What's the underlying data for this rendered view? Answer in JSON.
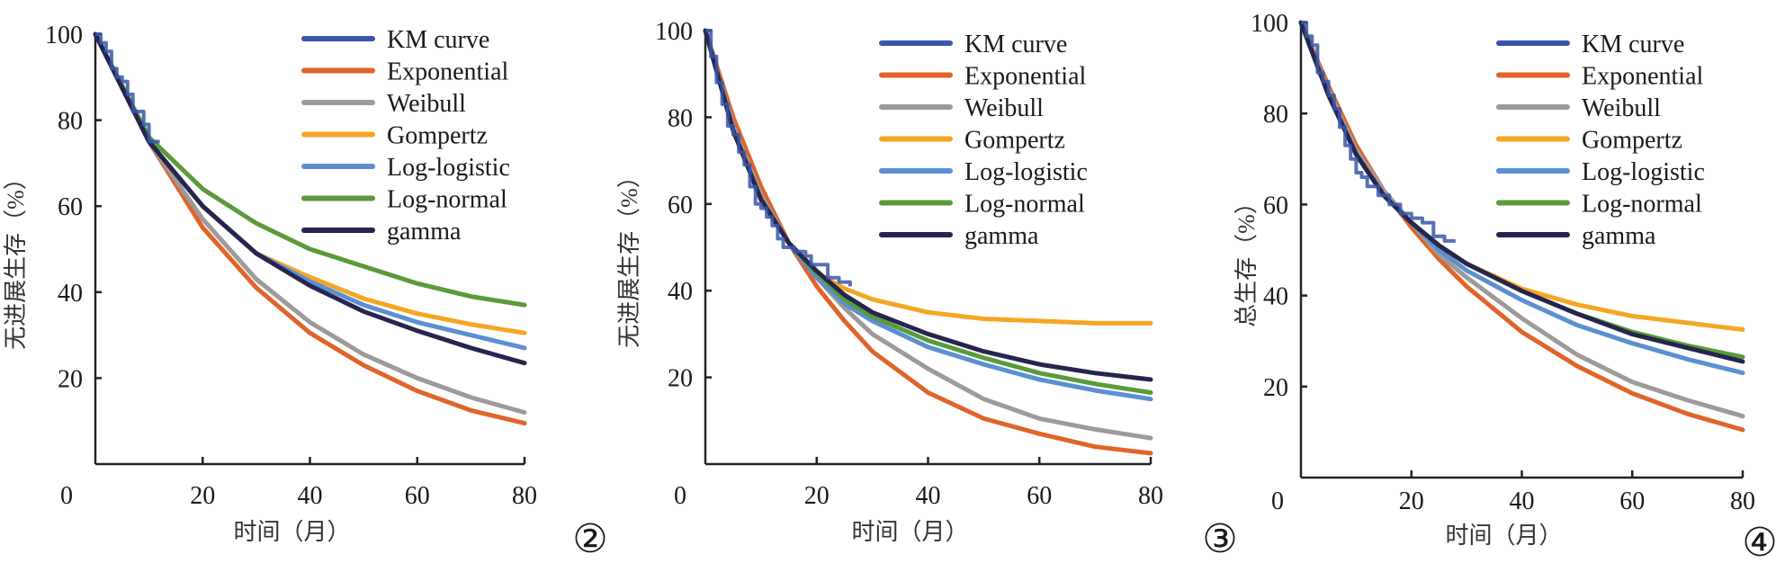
{
  "figure": {
    "panel_markers": [
      "②",
      "③",
      "④"
    ]
  },
  "legend_colors": {
    "KM curve": "#3a56a8",
    "Exponential": "#e0642a",
    "Weibull": "#9e9a9a",
    "Gompertz": "#f5a623",
    "Log-logistic": "#5b8fd0",
    "Log-normal": "#5a9a3a",
    "gamma": "#25254f"
  },
  "chart_data": [
    {
      "type": "line",
      "panel": "②",
      "title": "",
      "xlabel": "时间（月）",
      "ylabel": "无进展生存（%）",
      "xlim": [
        0,
        80
      ],
      "ylim": [
        0,
        100
      ],
      "xticks": [
        0,
        20,
        40,
        60,
        80
      ],
      "yticks": [
        20,
        40,
        60,
        80,
        100
      ],
      "grid": false,
      "legend_position": "top-right",
      "legend": [
        "KM curve",
        "Exponential",
        "Weibull",
        "Gompertz",
        "Log-logistic",
        "Log-normal",
        "gamma"
      ],
      "x": [
        0,
        10,
        20,
        30,
        40,
        50,
        60,
        70,
        80
      ],
      "km": [
        [
          0,
          100
        ],
        [
          1,
          98
        ],
        [
          2,
          96
        ],
        [
          3,
          92
        ],
        [
          4,
          90
        ],
        [
          5,
          89
        ],
        [
          6,
          86
        ],
        [
          7,
          82
        ],
        [
          8,
          82
        ],
        [
          9,
          79
        ],
        [
          10,
          75
        ],
        [
          12,
          75
        ]
      ],
      "series": [
        {
          "name": "Exponential",
          "values": [
            100,
            75,
            55,
            41,
            30.5,
            23,
            17,
            12.5,
            9.5
          ]
        },
        {
          "name": "Weibull",
          "values": [
            100,
            75,
            57,
            43,
            33,
            25.5,
            20,
            15.5,
            12
          ]
        },
        {
          "name": "Gompertz",
          "values": [
            100,
            75,
            60,
            49,
            43.5,
            38.5,
            35,
            32.5,
            30.5
          ]
        },
        {
          "name": "Log-logistic",
          "values": [
            100,
            75,
            60,
            49,
            42.5,
            37,
            33,
            30,
            27
          ]
        },
        {
          "name": "Log-normal",
          "values": [
            100,
            76,
            64,
            56,
            50,
            46,
            42,
            39,
            37
          ]
        },
        {
          "name": "gamma",
          "values": [
            100,
            75,
            60,
            49,
            41.5,
            35.5,
            31,
            27,
            23.5
          ]
        }
      ]
    },
    {
      "type": "line",
      "panel": "③",
      "title": "",
      "xlabel": "时间（月）",
      "ylabel": "无进展生存（%）",
      "xlim": [
        0,
        80
      ],
      "ylim": [
        0,
        100
      ],
      "xticks": [
        0,
        20,
        40,
        60,
        80
      ],
      "yticks": [
        20,
        40,
        60,
        80,
        100
      ],
      "grid": false,
      "legend_position": "top-right",
      "legend": [
        "KM curve",
        "Exponential",
        "Weibull",
        "Gompertz",
        "Log-logistic",
        "Log-normal",
        "gamma"
      ],
      "x": [
        0,
        5,
        10,
        15,
        20,
        25,
        30,
        40,
        50,
        60,
        70,
        80
      ],
      "km": [
        [
          0,
          100
        ],
        [
          1,
          94
        ],
        [
          2,
          88
        ],
        [
          3,
          83
        ],
        [
          4,
          78
        ],
        [
          5,
          76
        ],
        [
          6,
          72
        ],
        [
          7,
          69
        ],
        [
          8,
          64
        ],
        [
          9,
          60
        ],
        [
          10,
          59
        ],
        [
          11,
          57
        ],
        [
          12,
          55
        ],
        [
          13,
          52
        ],
        [
          14,
          50
        ],
        [
          16,
          49
        ],
        [
          18,
          48
        ],
        [
          19,
          46
        ],
        [
          20,
          46
        ],
        [
          22,
          43
        ],
        [
          24,
          42
        ],
        [
          26,
          41
        ]
      ],
      "series": [
        {
          "name": "Exponential",
          "values": [
            100,
            80,
            64,
            51,
            41,
            33,
            26,
            16.5,
            10.5,
            7,
            4,
            2.5
          ]
        },
        {
          "name": "Weibull",
          "values": [
            100,
            78,
            62,
            51,
            43,
            36,
            30,
            22,
            15,
            10.5,
            8,
            6
          ]
        },
        {
          "name": "Gompertz",
          "values": [
            100,
            77,
            61,
            51,
            44,
            40.5,
            38,
            35,
            33.5,
            33,
            32.5,
            32.5
          ]
        },
        {
          "name": "Log-logistic",
          "values": [
            100,
            77,
            61,
            51,
            43,
            37,
            33,
            27,
            23,
            19.5,
            17,
            15
          ]
        },
        {
          "name": "Log-normal",
          "values": [
            100,
            77,
            61,
            51,
            44,
            38,
            34,
            28.5,
            24.5,
            21,
            18.5,
            16.5
          ]
        },
        {
          "name": "gamma",
          "values": [
            100,
            77,
            61,
            51,
            44.5,
            39,
            35,
            30,
            26,
            23,
            21,
            19.5
          ]
        }
      ]
    },
    {
      "type": "line",
      "panel": "④",
      "title": "",
      "xlabel": "时间（月）",
      "ylabel": "总生存（%）",
      "xlim": [
        0,
        80
      ],
      "ylim": [
        0,
        100
      ],
      "xticks": [
        0,
        20,
        40,
        60,
        80
      ],
      "yticks": [
        20,
        40,
        60,
        80,
        100
      ],
      "grid": false,
      "legend_position": "top-right",
      "legend": [
        "KM curve",
        "Exponential",
        "Weibull",
        "Gompertz",
        "Log-logistic",
        "Log-normal",
        "gamma"
      ],
      "x": [
        0,
        5,
        10,
        15,
        20,
        25,
        30,
        40,
        50,
        60,
        70,
        80
      ],
      "km": [
        [
          0,
          100
        ],
        [
          1,
          97
        ],
        [
          2,
          95
        ],
        [
          3,
          89
        ],
        [
          4,
          87
        ],
        [
          5,
          84
        ],
        [
          6,
          81
        ],
        [
          7,
          77
        ],
        [
          8,
          73
        ],
        [
          9,
          70
        ],
        [
          10,
          67
        ],
        [
          11,
          66
        ],
        [
          12,
          64
        ],
        [
          14,
          62
        ],
        [
          16,
          60
        ],
        [
          18,
          58
        ],
        [
          20,
          57
        ],
        [
          22,
          56
        ],
        [
          24,
          53
        ],
        [
          26,
          52
        ],
        [
          28,
          52
        ]
      ],
      "series": [
        {
          "name": "Exponential",
          "values": [
            100,
            86,
            73,
            63,
            55,
            48,
            42,
            32,
            24.5,
            18.5,
            14,
            10.5
          ]
        },
        {
          "name": "Weibull",
          "values": [
            100,
            85,
            72,
            63,
            56,
            49,
            44,
            35,
            27,
            21,
            17,
            13.5
          ]
        },
        {
          "name": "Gompertz",
          "values": [
            100,
            84,
            71,
            62,
            56,
            51,
            47,
            41.5,
            38,
            35.5,
            34,
            32.5
          ]
        },
        {
          "name": "Log-logistic",
          "values": [
            100,
            84,
            71,
            62,
            56,
            50,
            45.5,
            39,
            33.5,
            29.5,
            26,
            23
          ]
        },
        {
          "name": "Log-normal",
          "values": [
            100,
            84,
            71,
            62,
            56,
            51,
            47,
            41,
            36,
            32,
            29,
            26.5
          ]
        },
        {
          "name": "gamma",
          "values": [
            100,
            84,
            71,
            62,
            56,
            51,
            47,
            41,
            36,
            31.5,
            28.5,
            25.5
          ]
        }
      ]
    }
  ]
}
